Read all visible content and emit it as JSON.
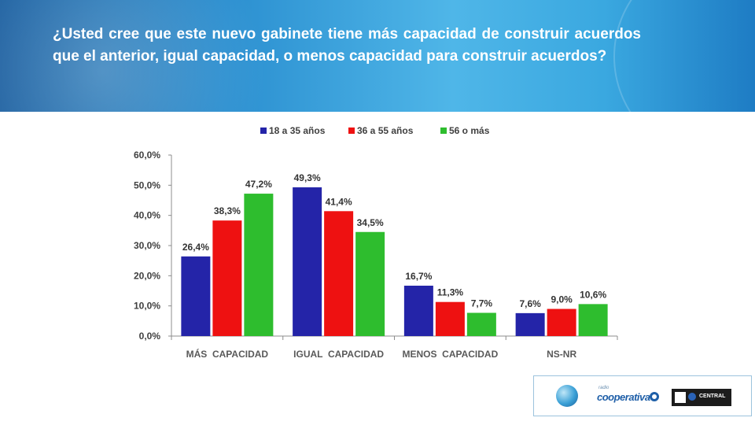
{
  "header": {
    "question": "¿Usted cree que este nuevo gabinete tiene más capacidad de construir acuerdos que el anterior, igual capacidad, o menos capacidad para construir acuerdos?"
  },
  "logos": {
    "cooperativa_label": "cooperativa",
    "cooperativa_prefix": "radio",
    "ucentral_label": "CENTRAL"
  },
  "chart_data": {
    "type": "bar",
    "title": "",
    "xlabel": "",
    "ylabel": "",
    "ylim": [
      0,
      60
    ],
    "y_ticks": [
      "0,0%",
      "10,0%",
      "20,0%",
      "30,0%",
      "40,0%",
      "50,0%",
      "60,0%"
    ],
    "y_tick_values": [
      0,
      10,
      20,
      30,
      40,
      50,
      60
    ],
    "grid": false,
    "legend_position": "top",
    "categories": [
      "MÁS  CAPACIDAD",
      "IGUAL  CAPACIDAD",
      "MENOS  CAPACIDAD",
      "NS-NR"
    ],
    "series": [
      {
        "name": "18 a 35 años",
        "color": "#2424a8",
        "values": [
          26.4,
          49.3,
          16.7,
          7.6
        ],
        "labels": [
          "26,4%",
          "49,3%",
          "16,7%",
          "7,6%"
        ]
      },
      {
        "name": "36 a 55 años",
        "color": "#ee1111",
        "values": [
          38.3,
          41.4,
          11.3,
          9.0
        ],
        "labels": [
          "38,3%",
          "41,4%",
          "11,3%",
          "9,0%"
        ]
      },
      {
        "name": "56 o más",
        "color": "#2ebd2e",
        "values": [
          47.2,
          34.5,
          7.7,
          10.6
        ],
        "labels": [
          "47,2%",
          "34,5%",
          "7,7%",
          "10,6%"
        ]
      }
    ]
  }
}
